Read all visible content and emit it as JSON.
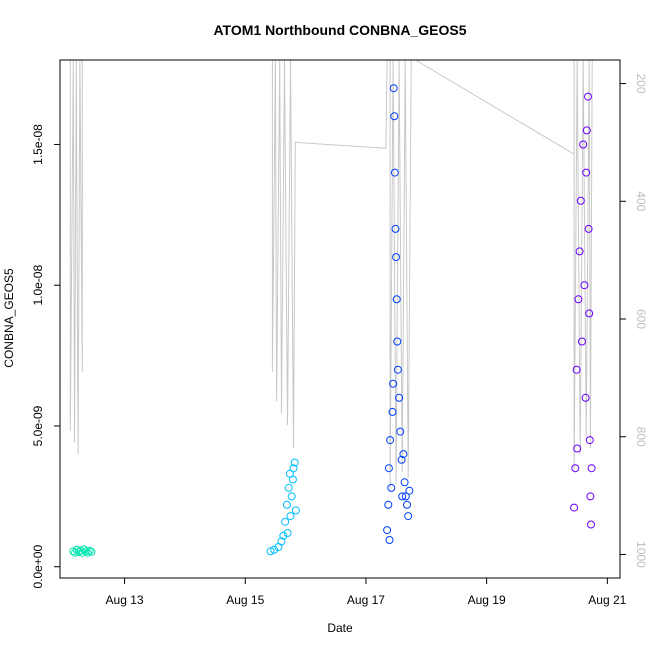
{
  "chart_data": {
    "type": "scatter",
    "title": "ATOM1 Northbound CONBNA_GEOS5",
    "xlabel": "Date",
    "ylabel": "CONBNA_GEOS5",
    "x_ticks": [
      "Aug 13",
      "Aug 15",
      "Aug 17",
      "Aug 19",
      "Aug 21"
    ],
    "x_tick_days": [
      13,
      15,
      17,
      19,
      21
    ],
    "xlim_days": [
      11.93,
      21.21
    ],
    "y_ticks": [
      "0.0e+00",
      "5.0e-09",
      "1.0e-08",
      "1.5e-08"
    ],
    "y_tick_values": [
      0,
      5e-09,
      1e-08,
      1.5e-08
    ],
    "ylim": [
      -4e-10,
      1.8e-08
    ],
    "y2_ticks": [
      "200",
      "400",
      "600",
      "800",
      "1000"
    ],
    "y2_tick_values": [
      200,
      400,
      600,
      800,
      1000
    ],
    "y2lim": [
      1040,
      160
    ],
    "y2_color": "#c8c8c8",
    "grid": false,
    "series": [
      {
        "color": "#00e6b0",
        "points": [
          [
            12.15,
            5.5e-10
          ],
          [
            12.18,
            5e-10
          ],
          [
            12.21,
            6e-10
          ],
          [
            12.24,
            5.2e-10
          ],
          [
            12.27,
            5.8e-10
          ],
          [
            12.3,
            5e-10
          ],
          [
            12.33,
            6.2e-10
          ],
          [
            12.36,
            5.5e-10
          ],
          [
            12.39,
            5e-10
          ],
          [
            12.42,
            5.7e-10
          ],
          [
            12.45,
            5.3e-10
          ]
        ]
      },
      {
        "color": "#00bfff",
        "points": [
          [
            15.42,
            5.5e-10
          ],
          [
            15.48,
            6e-10
          ],
          [
            15.55,
            7e-10
          ],
          [
            15.6,
            9e-10
          ],
          [
            15.63,
            1.1e-09
          ],
          [
            15.66,
            1.6e-09
          ],
          [
            15.69,
            2.2e-09
          ],
          [
            15.7,
            1.2e-09
          ],
          [
            15.72,
            2.8e-09
          ],
          [
            15.74,
            3.3e-09
          ],
          [
            15.75,
            1.8e-09
          ],
          [
            15.77,
            2.5e-09
          ],
          [
            15.79,
            3.1e-09
          ],
          [
            15.8,
            3.5e-09
          ],
          [
            15.82,
            3.7e-09
          ],
          [
            15.84,
            2e-09
          ]
        ]
      },
      {
        "color": "#0040ff",
        "points": [
          [
            17.35,
            1.3e-09
          ],
          [
            17.37,
            2.2e-09
          ],
          [
            17.38,
            3.5e-09
          ],
          [
            17.39,
            9.5e-10
          ],
          [
            17.4,
            4.5e-09
          ],
          [
            17.42,
            2.8e-09
          ],
          [
            17.44,
            5.5e-09
          ],
          [
            17.45,
            6.5e-09
          ],
          [
            17.46,
            1.7e-08
          ],
          [
            17.47,
            1.6e-08
          ],
          [
            17.48,
            1.4e-08
          ],
          [
            17.49,
            1.2e-08
          ],
          [
            17.5,
            1.1e-08
          ],
          [
            17.51,
            9.5e-09
          ],
          [
            17.52,
            8e-09
          ],
          [
            17.53,
            7e-09
          ],
          [
            17.55,
            6e-09
          ],
          [
            17.57,
            4.8e-09
          ],
          [
            17.59,
            3.8e-09
          ],
          [
            17.6,
            2.5e-09
          ],
          [
            17.62,
            4e-09
          ],
          [
            17.64,
            3e-09
          ],
          [
            17.66,
            2.5e-09
          ],
          [
            17.68,
            2.2e-09
          ],
          [
            17.7,
            1.8e-09
          ],
          [
            17.72,
            2.7e-09
          ]
        ]
      },
      {
        "color": "#6a00ff",
        "points": [
          [
            20.45,
            2.1e-09
          ],
          [
            20.47,
            3.5e-09
          ],
          [
            20.49,
            7e-09
          ],
          [
            20.5,
            4.2e-09
          ],
          [
            20.52,
            9.5e-09
          ],
          [
            20.54,
            1.12e-08
          ],
          [
            20.56,
            1.3e-08
          ],
          [
            20.58,
            8e-09
          ],
          [
            20.6,
            1.5e-08
          ],
          [
            20.62,
            1e-08
          ],
          [
            20.64,
            6e-09
          ],
          [
            20.65,
            1.4e-08
          ],
          [
            20.66,
            1.55e-08
          ],
          [
            20.68,
            1.67e-08
          ],
          [
            20.69,
            1.2e-08
          ],
          [
            20.7,
            9e-09
          ],
          [
            20.71,
            4.5e-09
          ],
          [
            20.72,
            2.5e-09
          ],
          [
            20.73,
            1.5e-09
          ],
          [
            20.74,
            3.5e-09
          ]
        ]
      }
    ],
    "pressure_trace": {
      "color": "#c8c8c8",
      "segments": [
        [
          [
            12.1,
            160
          ],
          [
            12.1,
            790
          ],
          [
            12.15,
            160
          ],
          [
            12.17,
            810
          ],
          [
            12.2,
            160
          ],
          [
            12.23,
            830
          ],
          [
            12.26,
            160
          ],
          [
            12.3,
            690
          ],
          [
            12.3,
            160
          ]
        ],
        [
          [
            15.45,
            160
          ],
          [
            15.45,
            690
          ],
          [
            15.5,
            160
          ],
          [
            15.52,
            740
          ],
          [
            15.57,
            160
          ],
          [
            15.6,
            760
          ],
          [
            15.65,
            160
          ],
          [
            15.7,
            780
          ],
          [
            15.75,
            160
          ],
          [
            15.8,
            820
          ],
          [
            15.83,
            300
          ],
          [
            17.33,
            310
          ],
          [
            17.35,
            160
          ]
        ],
        [
          [
            17.4,
            160
          ],
          [
            17.4,
            890
          ],
          [
            17.45,
            160
          ],
          [
            17.5,
            880
          ],
          [
            17.55,
            160
          ],
          [
            17.6,
            860
          ],
          [
            17.65,
            160
          ],
          [
            17.7,
            870
          ],
          [
            17.75,
            160
          ],
          [
            17.82,
            160
          ],
          [
            20.45,
            320
          ]
        ],
        [
          [
            20.45,
            160
          ],
          [
            20.45,
            860
          ],
          [
            20.5,
            160
          ],
          [
            20.55,
            830
          ],
          [
            20.6,
            160
          ],
          [
            20.65,
            800
          ],
          [
            20.7,
            160
          ],
          [
            20.72,
            820
          ],
          [
            20.75,
            160
          ]
        ]
      ]
    }
  }
}
